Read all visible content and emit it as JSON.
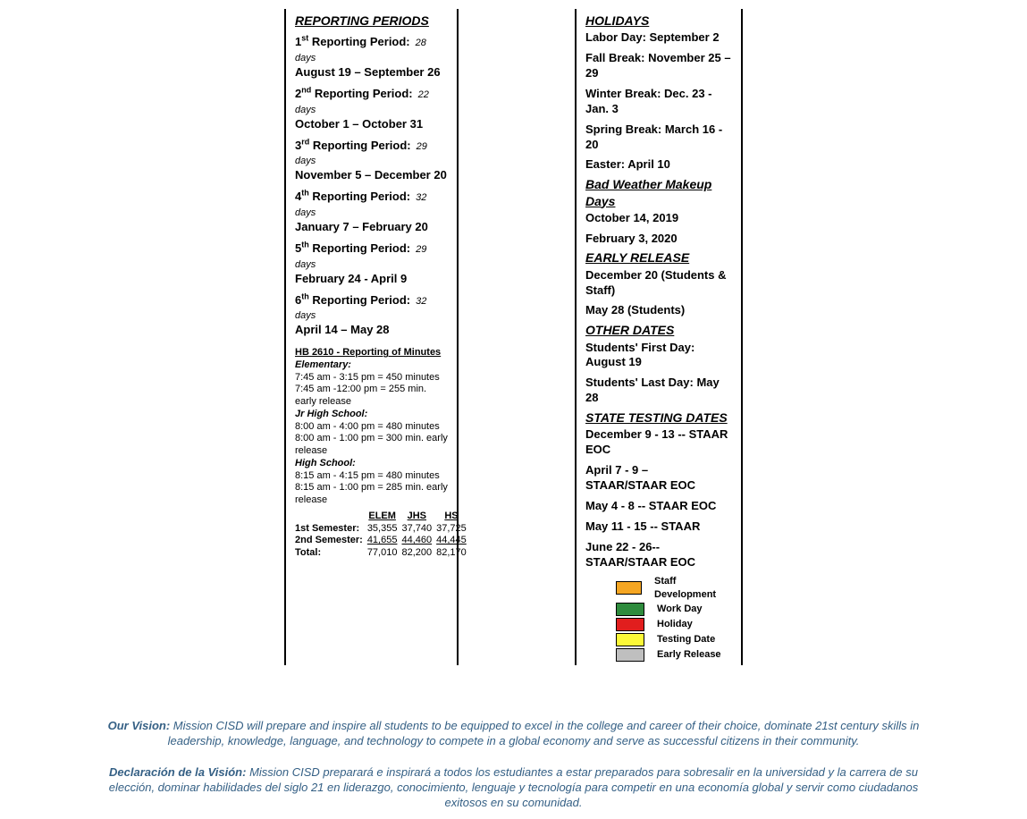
{
  "left": {
    "heading": "REPORTING PERIODS",
    "periods": [
      {
        "num": "1",
        "ord": "st",
        "days": "28 days",
        "range": "August 19 – September 26"
      },
      {
        "num": "2",
        "ord": "nd",
        "days": "22 days",
        "range": "October 1 – October 31"
      },
      {
        "num": "3",
        "ord": "rd",
        "days": "29 days",
        "range": "November 5 – December 20"
      },
      {
        "num": "4",
        "ord": "th",
        "days": "32 days",
        "range": "January 7 – February 20"
      },
      {
        "num": "5",
        "ord": "th",
        "days": "29 days",
        "range": "February 24 -  April 9"
      },
      {
        "num": "6",
        "ord": "th",
        "days": "32 days",
        "range": "April 14 – May 28"
      }
    ],
    "minutes": {
      "title": "HB 2610 - Reporting of Minutes",
      "elem_label": "Elementary:",
      "elem1": "7:45 am - 3:15 pm = 450 minutes",
      "elem2": "7:45 am -12:00 pm = 255 min. early release",
      "jr_label": "Jr High School:",
      "jr1": "8:00 am - 4:00 pm = 480 minutes",
      "jr2": "8:00 am - 1:00 pm = 300 min. early release",
      "hs_label": "High School:",
      "hs1": "8:15 am - 4:15 pm = 480 minutes",
      "hs2": "8:15 am - 1:00 pm = 285 min. early release"
    },
    "sem": {
      "h_elem": "ELEM",
      "h_jhs": "JHS",
      "h_hs": "HS",
      "r1_lbl": "1st Semester:",
      "r1_elem": "35,355",
      "r1_jhs": "37,740",
      "r1_hs": "37,725",
      "r2_lbl": "2nd Semester:",
      "r2_elem": "41,655",
      "r2_jhs": "44,460",
      "r2_hs": "44,445",
      "r3_lbl": "Total:",
      "r3_elem": "77,010",
      "r3_jhs": "82,200",
      "r3_hs": "82,170"
    }
  },
  "right": {
    "holidays_h": "HOLIDAYS",
    "holidays": [
      "Labor Day:  September 2",
      "Fall Break:  November 25 – 29",
      "Winter Break:  Dec. 23 - Jan. 3",
      "Spring Break:  March 16 - 20",
      "Easter:  April 10"
    ],
    "bwmd_h": "Bad Weather Makeup Days",
    "bwmd": [
      "October 14, 2019",
      "February 3, 2020"
    ],
    "early_h": "EARLY RELEASE",
    "early": [
      "December 20  (Students & Staff)",
      "May 28 (Students)"
    ],
    "other_h": "OTHER DATES",
    "other": [
      "Students' First Day:  August 19",
      "Students' Last Day:  May 28"
    ],
    "test_h": "STATE TESTING DATES",
    "test": [
      "December 9 - 13 -- STAAR EOC",
      "April 7 - 9 – STAAR/STAAR EOC",
      "May   4 - 8 -- STAAR EOC",
      "May 11 - 15 -- STAAR",
      "June 22 - 26--STAAR/STAAR EOC"
    ],
    "legend": [
      {
        "color": "#f5a623",
        "label": "Staff Development"
      },
      {
        "color": "#2e8b3d",
        "label": "Work Day"
      },
      {
        "color": "#e11e1e",
        "label": "Holiday"
      },
      {
        "color": "#fcf838",
        "label": "Testing Date"
      },
      {
        "color": "#bfbfbf",
        "label": "Early Release"
      }
    ]
  },
  "vision": {
    "label_en": "Our Vision:",
    "text_en": " Mission CISD will prepare and inspire all students to be equipped to excel in the college and career of their choice, dominate 21st century skills in leadership, knowledge, language, and technology to compete in a global economy and serve as successful citizens in their community.",
    "label_es": "Declaración de la Visión:",
    "text_es": " Mission CISD preparará e inspirará a todos los estudiantes a estar preparados para sobresalir en la universidad y la carrera de su elección, dominar habilidades del siglo 21 en liderazgo, conocimiento, lenguaje y tecnología para competir en una economía global y servir como ciudadanos exitosos en su comunidad."
  }
}
